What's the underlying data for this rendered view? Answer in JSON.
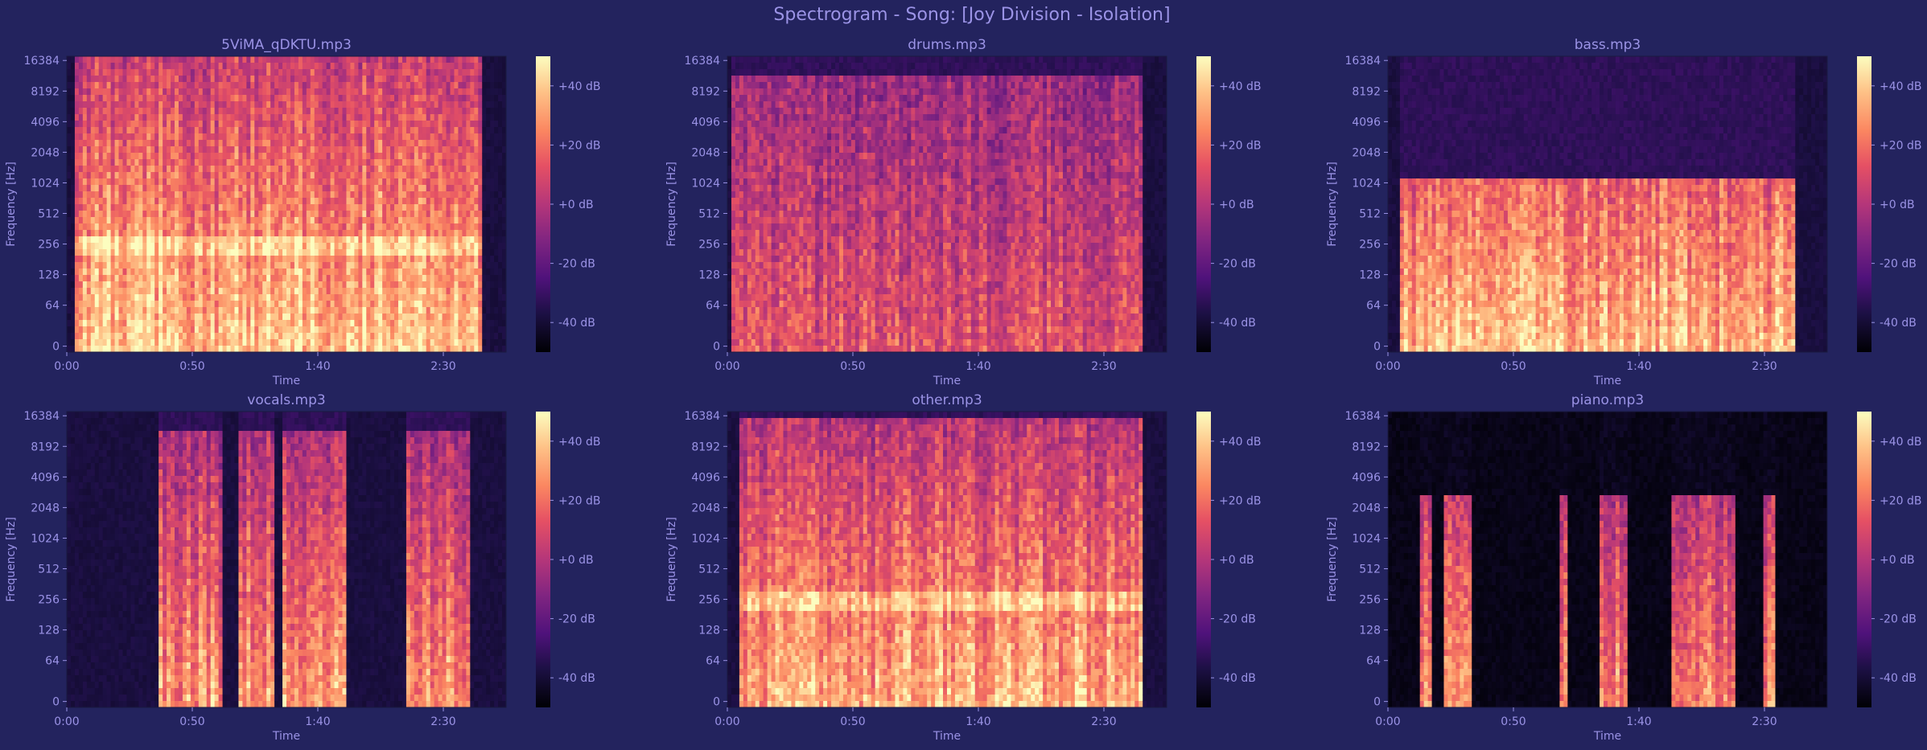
{
  "title": "Spectrogram - Song: [Joy Division - Isolation]",
  "chart_data": [
    {
      "type": "heatmap",
      "title": "5ViMA_qDKTU.mp3",
      "xlabel": "Time",
      "ylabel": "Frequency [Hz]",
      "xticks": [
        "0:00",
        "0:50",
        "1:40",
        "2:30"
      ],
      "xlim_s": [
        0,
        175
      ],
      "yticks": [
        "0",
        "64",
        "128",
        "256",
        "512",
        "1024",
        "2048",
        "4096",
        "8192",
        "16384"
      ],
      "colorbar": [
        "+40 dB",
        "+20 dB",
        "+0 dB",
        "-20 dB",
        "-40 dB"
      ],
      "colorbar_range_db": [
        -50,
        50
      ],
      "colormap": "magma",
      "scale": "log",
      "content": "mix",
      "active_range_s": [
        [
          3,
          166
        ]
      ],
      "freq_cutoff_hz": 19000,
      "level": 0.72
    },
    {
      "type": "heatmap",
      "title": "drums.mp3",
      "xlabel": "Time",
      "ylabel": "Frequency [Hz]",
      "xticks": [
        "0:00",
        "0:50",
        "1:40",
        "2:30"
      ],
      "xlim_s": [
        0,
        175
      ],
      "yticks": [
        "0",
        "64",
        "128",
        "256",
        "512",
        "1024",
        "2048",
        "4096",
        "8192",
        "16384"
      ],
      "colorbar": [
        "+40 dB",
        "+20 dB",
        "+0 dB",
        "-20 dB",
        "-40 dB"
      ],
      "colorbar_range_db": [
        -50,
        50
      ],
      "colormap": "magma",
      "scale": "log",
      "content": "drums",
      "active_range_s": [
        [
          2,
          166
        ]
      ],
      "freq_cutoff_hz": 11000,
      "level": 0.55
    },
    {
      "type": "heatmap",
      "title": "bass.mp3",
      "xlabel": "Time",
      "ylabel": "Frequency [Hz]",
      "xticks": [
        "0:00",
        "0:50",
        "1:40",
        "2:30"
      ],
      "xlim_s": [
        0,
        175
      ],
      "yticks": [
        "0",
        "64",
        "128",
        "256",
        "512",
        "1024",
        "2048",
        "4096",
        "8192",
        "16384"
      ],
      "colorbar": [
        "+40 dB",
        "+20 dB",
        "+0 dB",
        "-20 dB",
        "-40 dB"
      ],
      "colorbar_range_db": [
        -50,
        50
      ],
      "colormap": "magma",
      "scale": "log",
      "content": "bass",
      "active_range_s": [
        [
          5,
          162
        ]
      ],
      "freq_cutoff_hz": 1200,
      "level": 0.68
    },
    {
      "type": "heatmap",
      "title": "vocals.mp3",
      "xlabel": "Time",
      "ylabel": "Frequency [Hz]",
      "xticks": [
        "0:00",
        "0:50",
        "1:40",
        "2:30"
      ],
      "xlim_s": [
        0,
        175
      ],
      "yticks": [
        "0",
        "64",
        "128",
        "256",
        "512",
        "1024",
        "2048",
        "4096",
        "8192",
        "16384"
      ],
      "colorbar": [
        "+40 dB",
        "+20 dB",
        "+0 dB",
        "-20 dB",
        "-40 dB"
      ],
      "colorbar_range_db": [
        -50,
        50
      ],
      "colormap": "magma",
      "scale": "log",
      "content": "vocals",
      "active_range_s": [
        [
          37,
          62
        ],
        [
          68,
          82
        ],
        [
          86,
          112
        ],
        [
          135,
          160
        ]
      ],
      "freq_cutoff_hz": 11000,
      "level": 0.6
    },
    {
      "type": "heatmap",
      "title": "other.mp3",
      "xlabel": "Time",
      "ylabel": "Frequency [Hz]",
      "xticks": [
        "0:00",
        "0:50",
        "1:40",
        "2:30"
      ],
      "xlim_s": [
        0,
        175
      ],
      "yticks": [
        "0",
        "64",
        "128",
        "256",
        "512",
        "1024",
        "2048",
        "4096",
        "8192",
        "16384"
      ],
      "colorbar": [
        "+40 dB",
        "+20 dB",
        "+0 dB",
        "-20 dB",
        "-40 dB"
      ],
      "colorbar_range_db": [
        -50,
        50
      ],
      "colormap": "magma",
      "scale": "log",
      "content": "mix",
      "active_range_s": [
        [
          4,
          166
        ]
      ],
      "freq_cutoff_hz": 15000,
      "level": 0.66
    },
    {
      "type": "heatmap",
      "title": "piano.mp3",
      "xlabel": "Time",
      "ylabel": "Frequency [Hz]",
      "xticks": [
        "0:00",
        "0:50",
        "1:40",
        "2:30"
      ],
      "xlim_s": [
        0,
        175
      ],
      "yticks": [
        "0",
        "64",
        "128",
        "256",
        "512",
        "1024",
        "2048",
        "4096",
        "8192",
        "16384"
      ],
      "colorbar": [
        "+40 dB",
        "+20 dB",
        "+0 dB",
        "-20 dB",
        "-40 dB"
      ],
      "colorbar_range_db": [
        -50,
        50
      ],
      "colormap": "magma",
      "scale": "log",
      "content": "piano",
      "active_range_s": [
        [
          12,
          17
        ],
        [
          22,
          34
        ],
        [
          68,
          72
        ],
        [
          84,
          96
        ],
        [
          113,
          138
        ],
        [
          150,
          154
        ]
      ],
      "freq_cutoff_hz": 3000,
      "level": 0.55
    }
  ]
}
